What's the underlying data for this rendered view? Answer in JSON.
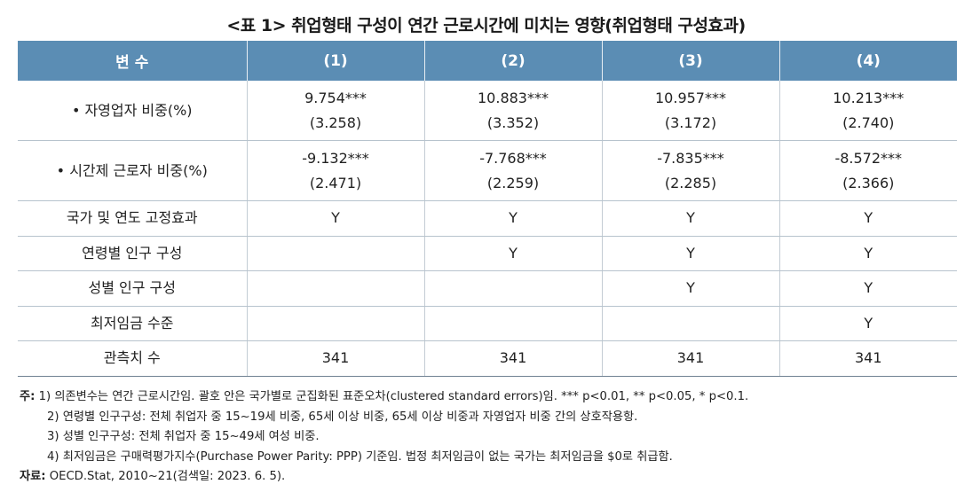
{
  "title": "<표 1> 취업형태 구성이 연간 근로시간에 미치는 영향(취업형태 구성효과)",
  "header": [
    "변 수",
    "(1)",
    "(2)",
    "(3)",
    "(4)"
  ],
  "rows": [
    {
      "label": "• 자영업자 비중(%)",
      "cells": [
        [
          "9.754***",
          "(3.258)"
        ],
        [
          "10.883***",
          "(3.352)"
        ],
        [
          "10.957***",
          "(3.172)"
        ],
        [
          "10.213***",
          "(2.740)"
        ]
      ]
    },
    {
      "label": "• 시간제 근로자 비중(%)",
      "cells": [
        [
          "-9.132***",
          "(2.471)"
        ],
        [
          "-7.768***",
          "(2.259)"
        ],
        [
          "-7.835***",
          "(2.285)"
        ],
        [
          "-8.572***",
          "(2.366)"
        ]
      ]
    },
    {
      "label": "국가 및 연도 고정효과",
      "cells": [
        "Y",
        "Y",
        "Y",
        "Y"
      ]
    },
    {
      "label": "연령별 인구 구성",
      "cells": [
        "",
        "Y",
        "Y",
        "Y"
      ]
    },
    {
      "label": "성별 인구 구성",
      "cells": [
        "",
        "",
        "Y",
        "Y"
      ]
    },
    {
      "label": "최저임금 수준",
      "cells": [
        "",
        "",
        "",
        "Y"
      ]
    },
    {
      "label": "관측치 수",
      "cells": [
        "341",
        "341",
        "341",
        "341"
      ]
    }
  ],
  "notes": {
    "note_label": "주:",
    "note1": "1) 의존변수는 연간 근로시간임. 괄호 안은 국가별로 군집화된 표준오차(clustered standard errors)임. *** p<0.01, ** p<0.05, * p<0.1.",
    "note2": "2) 연령별 인구구성: 전체 취업자 중 15~19세 비중, 65세 이상 비중, 65세 이상 비중과 자영업자 비중 간의 상호작용항.",
    "note3": "3) 성별 인구구성: 전체 취업자 중 15~49세 여성 비중.",
    "note4": "4) 최저임금은 구매력평가지수(Purchase Power Parity: PPP) 기준임. 법정 최저임금이 없는 국가는 최저임금을 $0로 취급함.",
    "source_label": "자료:",
    "source": "OECD.Stat, 2010~21(검색일: 2023. 6. 5)."
  }
}
